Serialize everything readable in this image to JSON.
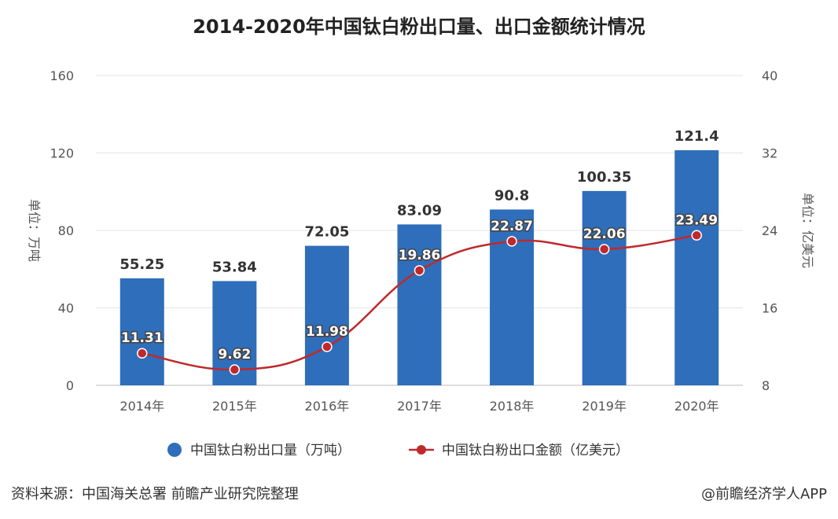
{
  "footer": {
    "source": "资料来源：中国海关总署 前瞻产业研究院整理",
    "brand": "@前瞻经济学人APP"
  },
  "colors": {
    "bar": "#2F6EBA",
    "line": "#C0292B",
    "grid": "#E3E3E3",
    "axis_text": "#555555"
  },
  "chart_data": {
    "type": "bar",
    "title": "2014-2020年中国钛白粉出口量、出口金额统计情况",
    "categories": [
      "2014年",
      "2015年",
      "2016年",
      "2017年",
      "2018年",
      "2019年",
      "2020年"
    ],
    "y_left": {
      "label": "单位：万吨",
      "min": 0,
      "max": 160,
      "ticks": [
        0,
        40,
        80,
        120,
        160
      ]
    },
    "y_right": {
      "label": "单位：亿美元",
      "min": 8,
      "max": 40,
      "ticks": [
        8,
        16,
        24,
        32,
        40
      ]
    },
    "grid": true,
    "legend_position": "bottom-center",
    "series": [
      {
        "name": "中国钛白粉出口量（万吨）",
        "type": "bar",
        "axis": "left",
        "values": [
          55.25,
          53.84,
          72.05,
          83.09,
          90.8,
          100.35,
          121.4
        ],
        "labels": [
          "55.25",
          "53.84",
          "72.05",
          "83.09",
          "90.8",
          "100.35",
          "121.4"
        ]
      },
      {
        "name": "中国钛白粉出口金额（亿美元）",
        "type": "line",
        "axis": "right",
        "values": [
          11.31,
          9.62,
          11.98,
          19.86,
          22.87,
          22.06,
          23.49
        ],
        "labels": [
          "11.31",
          "9.62",
          "11.98",
          "19.86",
          "22.87",
          "22.06",
          "23.49"
        ]
      }
    ]
  }
}
